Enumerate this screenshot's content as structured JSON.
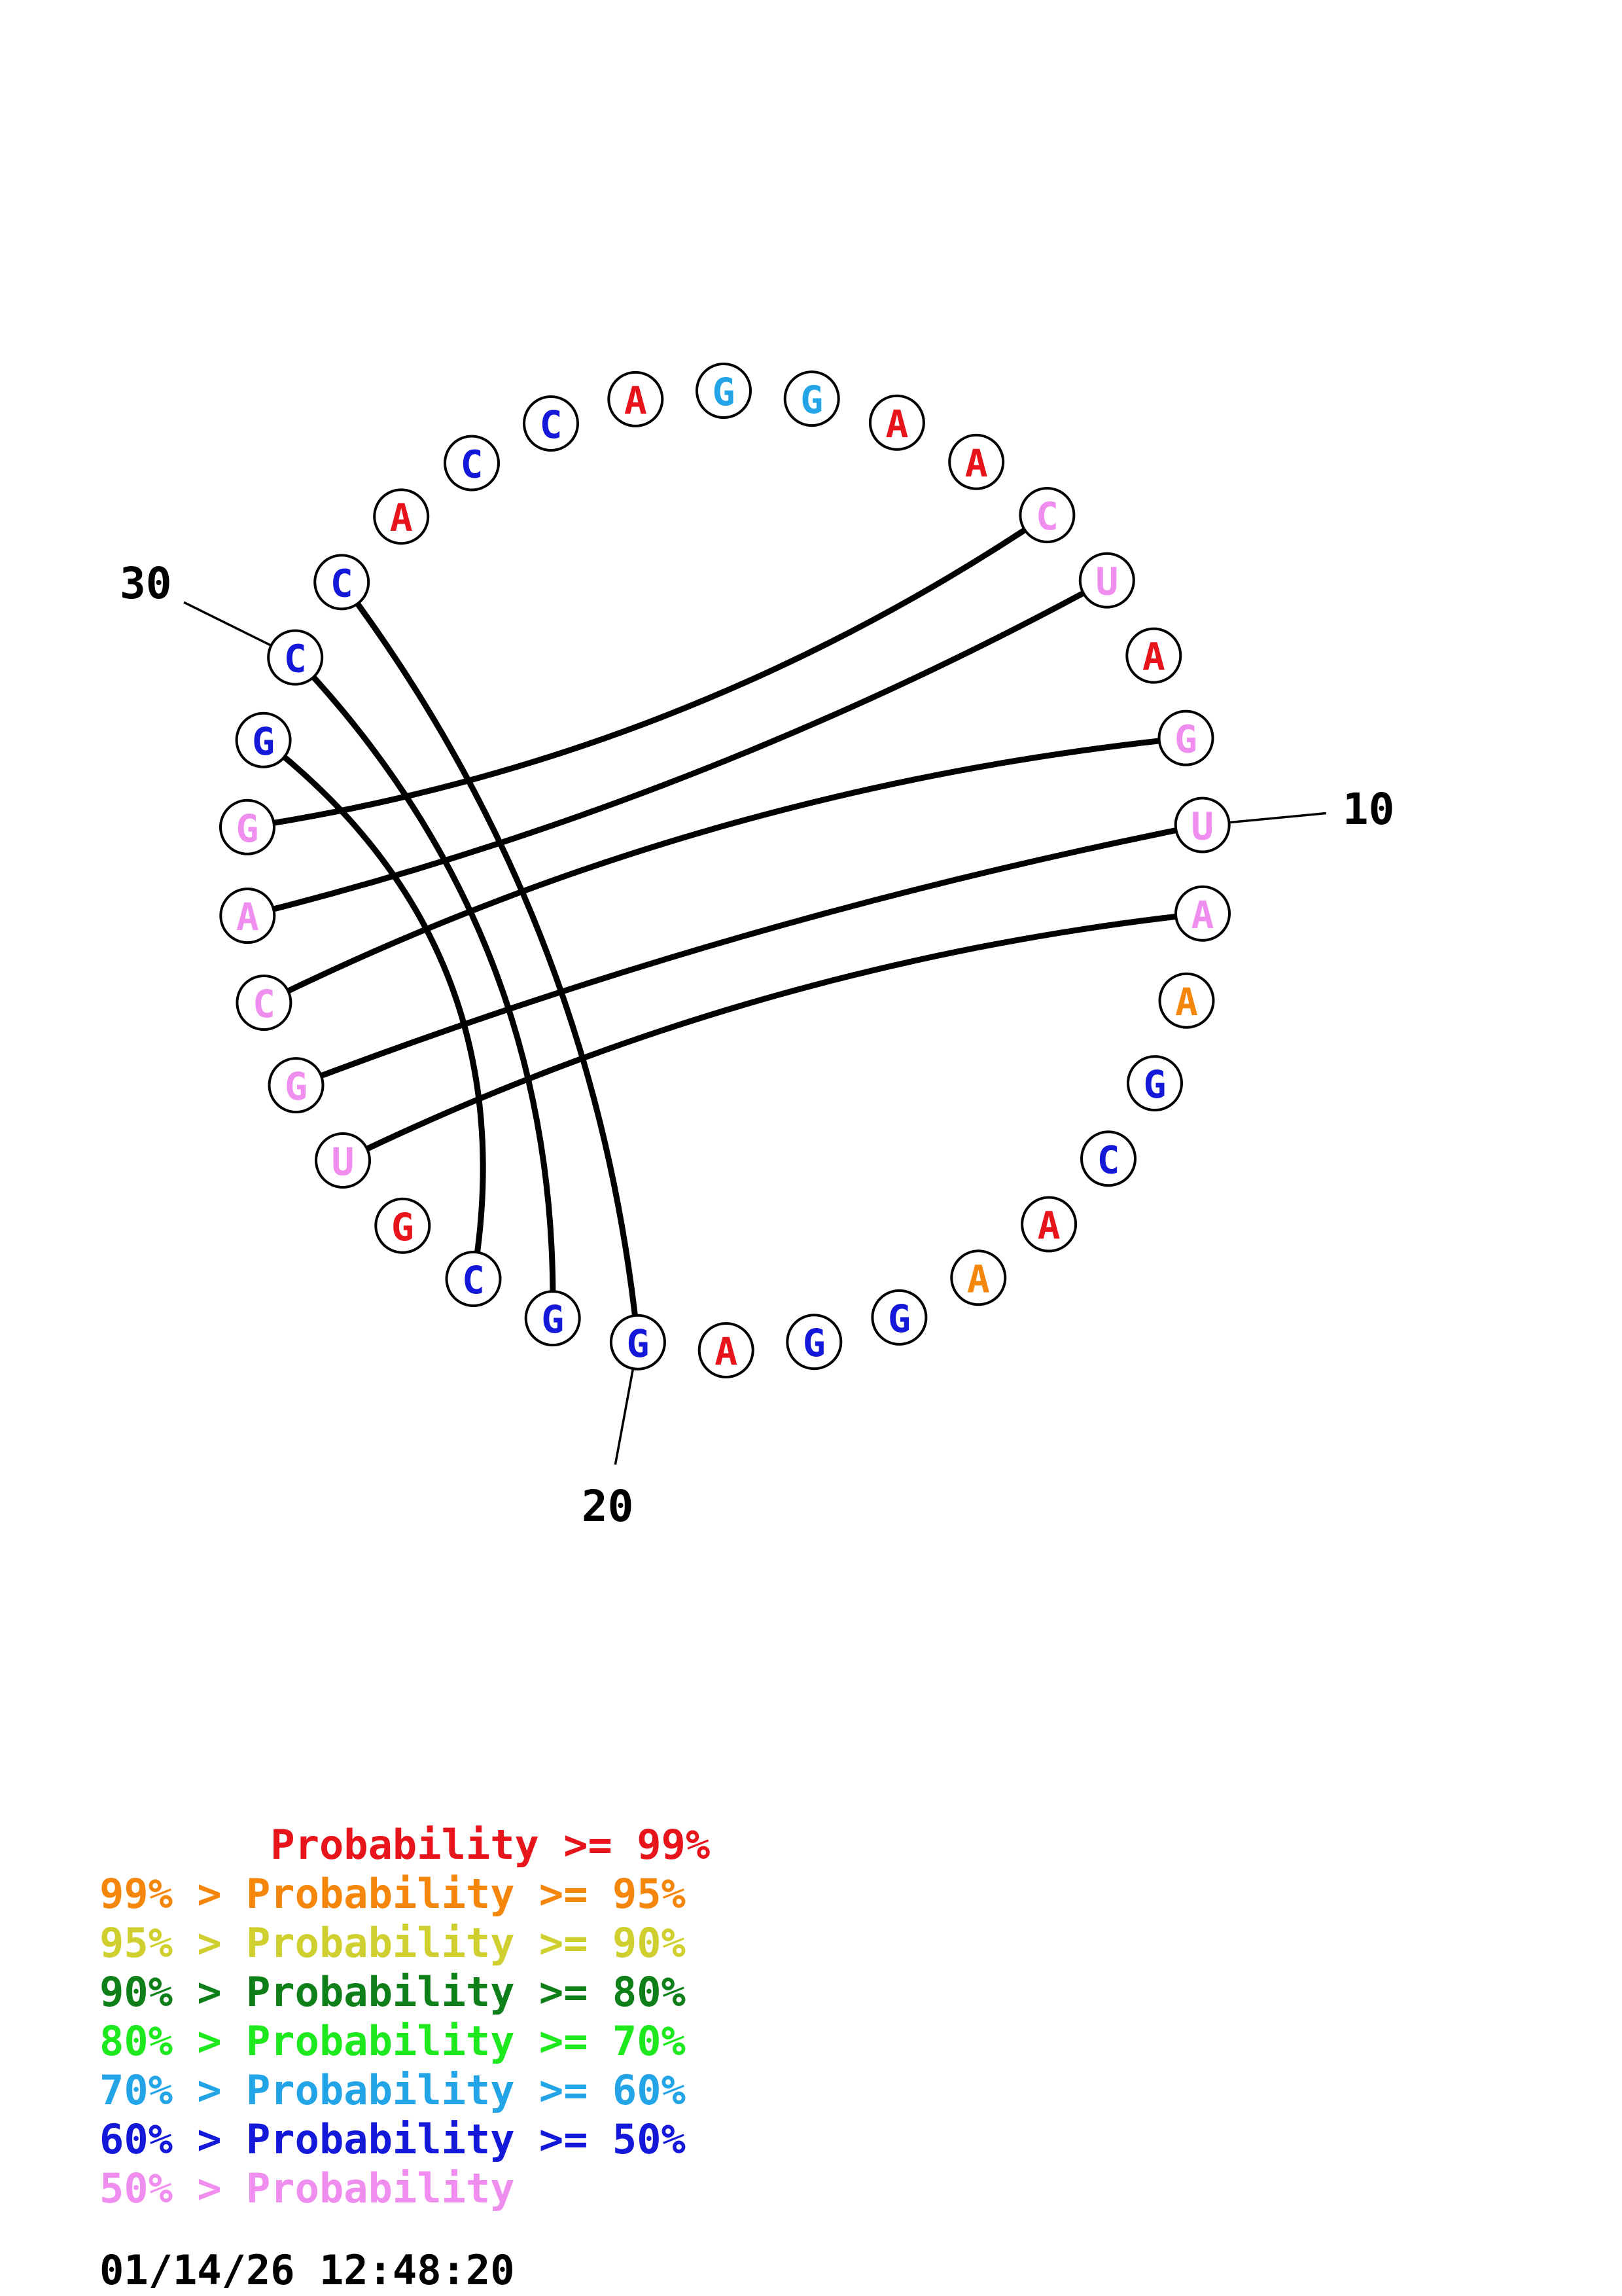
{
  "colors": {
    "p99": "#e8141c",
    "p95": "#f5860c",
    "p90": "#cfd030",
    "p80": "#0f7f1a",
    "p70": "#1ee81e",
    "p60": "#22a4e6",
    "p50": "#1418d8",
    "lt50": "#f08ef0"
  },
  "nucleotides": [
    {
      "n": 1,
      "base": "A",
      "prob": "p99"
    },
    {
      "n": 2,
      "base": "G",
      "prob": "p60"
    },
    {
      "n": 3,
      "base": "G",
      "prob": "p60"
    },
    {
      "n": 4,
      "base": "A",
      "prob": "p99"
    },
    {
      "n": 5,
      "base": "A",
      "prob": "p99"
    },
    {
      "n": 6,
      "base": "C",
      "prob": "lt50"
    },
    {
      "n": 7,
      "base": "U",
      "prob": "lt50"
    },
    {
      "n": 8,
      "base": "A",
      "prob": "p99"
    },
    {
      "n": 9,
      "base": "G",
      "prob": "lt50"
    },
    {
      "n": 10,
      "base": "U",
      "prob": "lt50"
    },
    {
      "n": 11,
      "base": "A",
      "prob": "lt50"
    },
    {
      "n": 12,
      "base": "A",
      "prob": "p95"
    },
    {
      "n": 13,
      "base": "G",
      "prob": "p50"
    },
    {
      "n": 14,
      "base": "C",
      "prob": "p50"
    },
    {
      "n": 15,
      "base": "A",
      "prob": "p99"
    },
    {
      "n": 16,
      "base": "A",
      "prob": "p95"
    },
    {
      "n": 17,
      "base": "G",
      "prob": "p50"
    },
    {
      "n": 18,
      "base": "G",
      "prob": "p50"
    },
    {
      "n": 19,
      "base": "A",
      "prob": "p99"
    },
    {
      "n": 20,
      "base": "G",
      "prob": "p50"
    },
    {
      "n": 21,
      "base": "G",
      "prob": "p50"
    },
    {
      "n": 22,
      "base": "C",
      "prob": "p50"
    },
    {
      "n": 23,
      "base": "G",
      "prob": "p99"
    },
    {
      "n": 24,
      "base": "U",
      "prob": "lt50"
    },
    {
      "n": 25,
      "base": "G",
      "prob": "lt50"
    },
    {
      "n": 26,
      "base": "C",
      "prob": "lt50"
    },
    {
      "n": 27,
      "base": "A",
      "prob": "lt50"
    },
    {
      "n": 28,
      "base": "G",
      "prob": "lt50"
    },
    {
      "n": 29,
      "base": "G",
      "prob": "p50"
    },
    {
      "n": 30,
      "base": "C",
      "prob": "p50"
    },
    {
      "n": 31,
      "base": "C",
      "prob": "p50"
    },
    {
      "n": 32,
      "base": "A",
      "prob": "p99"
    },
    {
      "n": 33,
      "base": "C",
      "prob": "p50"
    },
    {
      "n": 34,
      "base": "C",
      "prob": "p50"
    }
  ],
  "pairs": [
    [
      6,
      28
    ],
    [
      7,
      27
    ],
    [
      9,
      26
    ],
    [
      10,
      25
    ],
    [
      11,
      24
    ],
    [
      20,
      31
    ],
    [
      21,
      30
    ],
    [
      22,
      29
    ]
  ],
  "ticks": [
    {
      "n": 10,
      "label": "10"
    },
    {
      "n": 20,
      "label": "20"
    },
    {
      "n": 30,
      "label": "30"
    }
  ],
  "legend": [
    {
      "text": "       Probability >= 99%",
      "prob": "p99"
    },
    {
      "text": "99% > Probability >= 95%",
      "prob": "p95"
    },
    {
      "text": "95% > Probability >= 90%",
      "prob": "p90"
    },
    {
      "text": "90% > Probability >= 80%",
      "prob": "p80"
    },
    {
      "text": "80% > Probability >= 70%",
      "prob": "p70"
    },
    {
      "text": "70% > Probability >= 60%",
      "prob": "p60"
    },
    {
      "text": "60% > Probability >= 50%",
      "prob": "p50"
    },
    {
      "text": "50% > Probability",
      "prob": "lt50"
    }
  ],
  "timestamp": "01/14/26 12:48:20"
}
